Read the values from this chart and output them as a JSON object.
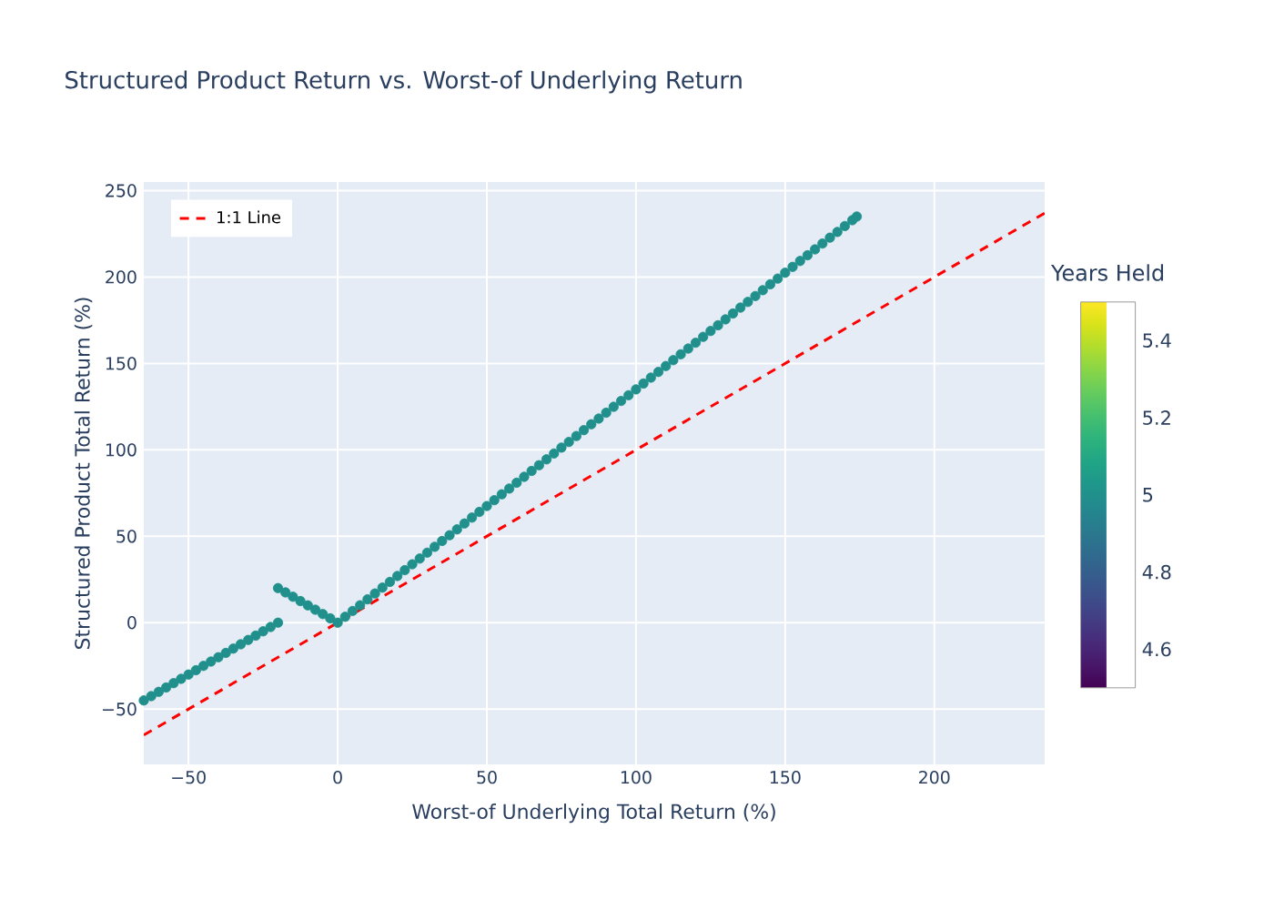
{
  "chart_data": {
    "type": "scatter",
    "title": "Structured Product Return vs. Worst-of Underlying Return",
    "xlabel": "Worst-of Underlying Total Return (%)",
    "ylabel": "Structured Product Total Return (%)",
    "clabel": "Years Held",
    "clim": [
      4.5,
      5.5
    ],
    "cticks": [
      4.6,
      4.8,
      5,
      5.2,
      5.4
    ],
    "xlim": [
      -65,
      237
    ],
    "ylim": [
      -82,
      255
    ],
    "xticks": [
      {
        "value": -50,
        "label": "−50"
      },
      0,
      50,
      100,
      150,
      200
    ],
    "yticks": [
      {
        "value": -50,
        "label": "−50"
      },
      0,
      50,
      100,
      150,
      200,
      250
    ],
    "grid": true,
    "legend": "top left",
    "series": [
      {
        "marker": "circle",
        "x": [
          -65,
          -62.5,
          -60,
          -57.5,
          -55,
          -52.5,
          -50,
          -47.5,
          -45,
          -42.5,
          -40,
          -37.5,
          -35,
          -32.5,
          -30,
          -27.5,
          -25,
          -22.5,
          -20,
          -20,
          -17.5,
          -15,
          -12.5,
          -10,
          -7.5,
          -5,
          -2.5,
          0,
          2.5,
          5,
          7.5,
          10,
          12.5,
          15,
          17.5,
          20,
          22.5,
          25,
          27.5,
          30,
          32.5,
          35,
          37.5,
          40,
          42.5,
          45,
          47.5,
          50,
          52.5,
          55,
          57.5,
          60,
          62.5,
          65,
          67.5,
          70,
          72.5,
          75,
          77.5,
          80,
          82.5,
          85,
          87.5,
          90,
          92.5,
          95,
          97.5,
          100,
          102.5,
          105,
          107.5,
          110,
          112.5,
          115,
          117.5,
          120,
          122.5,
          125,
          127.5,
          130,
          132.5,
          135,
          137.5,
          140,
          142.5,
          145,
          147.5,
          150,
          152.5,
          155,
          157.5,
          160,
          162.5,
          165,
          167.5,
          170,
          172.5,
          174
        ],
        "values": [
          -45,
          -42.5,
          -40,
          -37.5,
          -35,
          -32.5,
          -30,
          -27.5,
          -25,
          -22.5,
          -20,
          -17.5,
          -15,
          -12.5,
          -10,
          -7.5,
          -5,
          -2.5,
          0,
          20,
          17.5,
          15,
          12.5,
          10,
          7.5,
          5,
          2.5,
          0,
          3.4,
          6.8,
          10.1,
          13.5,
          16.9,
          20.3,
          23.6,
          27,
          30.4,
          33.8,
          37.1,
          40.5,
          43.9,
          47.3,
          50.6,
          54,
          57.4,
          60.8,
          64.1,
          67.5,
          70.9,
          74.3,
          77.6,
          81,
          84.4,
          87.8,
          91.1,
          94.5,
          97.9,
          101.3,
          104.6,
          108,
          111.4,
          114.8,
          118.1,
          121.5,
          124.9,
          128.3,
          131.6,
          135,
          138.4,
          141.8,
          145.1,
          148.5,
          151.9,
          155.3,
          158.6,
          162,
          165.4,
          168.8,
          172.1,
          175.5,
          178.9,
          182.3,
          185.6,
          189,
          192.4,
          195.8,
          199.1,
          202.5,
          205.9,
          209.3,
          212.6,
          216,
          219.4,
          222.8,
          226.1,
          229.5,
          232.9,
          235
        ],
        "cvalues": [
          5,
          5,
          5,
          5,
          5,
          5,
          5,
          5,
          5,
          5,
          5,
          5,
          5,
          5,
          5,
          5,
          5,
          5,
          5,
          5,
          5,
          5,
          5,
          5,
          5,
          5,
          5,
          5,
          5,
          5,
          5,
          5,
          5,
          5,
          5,
          5,
          5,
          5,
          5,
          5,
          5,
          5,
          5,
          5,
          5,
          5,
          5,
          5,
          5,
          5,
          5,
          5,
          5,
          5,
          5,
          5,
          5,
          5,
          5,
          5,
          5,
          5,
          5,
          5,
          5,
          5,
          5,
          5,
          5,
          5,
          5,
          5,
          5,
          5,
          5,
          5,
          5,
          5,
          5,
          5,
          5,
          5,
          5,
          5,
          5,
          5,
          5,
          5,
          5,
          5,
          5,
          5,
          5,
          5,
          5,
          5,
          5,
          5
        ]
      },
      {
        "type": "line",
        "name": "1:1 Line",
        "color": "#ff0000",
        "line_style": "dashed",
        "x": [
          -65,
          237
        ],
        "values": [
          -65,
          237
        ]
      }
    ]
  }
}
